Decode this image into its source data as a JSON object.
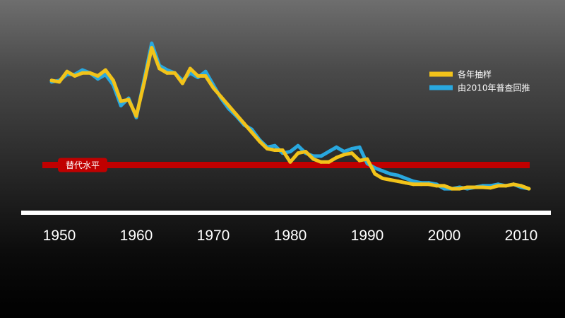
{
  "chart_data": {
    "type": "line",
    "xlim": [
      1946,
      2013
    ],
    "ylim": [
      1.0,
      7.0
    ],
    "x_ticks": [
      1950,
      1960,
      1970,
      1980,
      1990,
      2000,
      2010
    ],
    "series": [
      {
        "name": "各年抽样",
        "color": "#f2c31a",
        "points": [
          [
            1949,
            5.6
          ],
          [
            1950,
            5.55
          ],
          [
            1951,
            5.9
          ],
          [
            1952,
            5.75
          ],
          [
            1953,
            5.85
          ],
          [
            1954,
            5.85
          ],
          [
            1955,
            5.75
          ],
          [
            1956,
            5.95
          ],
          [
            1957,
            5.6
          ],
          [
            1958,
            4.9
          ],
          [
            1959,
            4.95
          ],
          [
            1960,
            4.4
          ],
          [
            1961,
            5.5
          ],
          [
            1962,
            6.7
          ],
          [
            1963,
            6.0
          ],
          [
            1964,
            5.85
          ],
          [
            1965,
            5.85
          ],
          [
            1966,
            5.5
          ],
          [
            1967,
            6.0
          ],
          [
            1968,
            5.75
          ],
          [
            1969,
            5.75
          ],
          [
            1970,
            5.35
          ],
          [
            1971,
            5.05
          ],
          [
            1972,
            4.75
          ],
          [
            1973,
            4.45
          ],
          [
            1974,
            4.15
          ],
          [
            1975,
            3.85
          ],
          [
            1976,
            3.55
          ],
          [
            1977,
            3.3
          ],
          [
            1978,
            3.25
          ],
          [
            1979,
            3.25
          ],
          [
            1980,
            2.85
          ],
          [
            1981,
            3.15
          ],
          [
            1982,
            3.2
          ],
          [
            1983,
            2.95
          ],
          [
            1984,
            2.85
          ],
          [
            1985,
            2.85
          ],
          [
            1986,
            3.0
          ],
          [
            1987,
            3.1
          ],
          [
            1988,
            3.15
          ],
          [
            1989,
            2.9
          ],
          [
            1990,
            2.95
          ],
          [
            1991,
            2.45
          ],
          [
            1992,
            2.3
          ],
          [
            1993,
            2.25
          ],
          [
            1994,
            2.2
          ],
          [
            1995,
            2.15
          ],
          [
            1996,
            2.1
          ],
          [
            1997,
            2.1
          ],
          [
            1998,
            2.1
          ],
          [
            1999,
            2.05
          ],
          [
            2000,
            2.05
          ],
          [
            2001,
            1.95
          ],
          [
            2002,
            1.95
          ],
          [
            2003,
            2.0
          ],
          [
            2004,
            2.0
          ],
          [
            2005,
            2.0
          ],
          [
            2006,
            1.98
          ],
          [
            2007,
            2.05
          ],
          [
            2008,
            2.05
          ],
          [
            2009,
            2.1
          ],
          [
            2010,
            2.05
          ],
          [
            2011,
            1.95
          ]
        ]
      },
      {
        "name": "由2010年普查回推",
        "color": "#29a8df",
        "points": [
          [
            1949,
            5.55
          ],
          [
            1950,
            5.6
          ],
          [
            1951,
            5.8
          ],
          [
            1952,
            5.8
          ],
          [
            1953,
            5.95
          ],
          [
            1954,
            5.85
          ],
          [
            1955,
            5.65
          ],
          [
            1956,
            5.8
          ],
          [
            1957,
            5.45
          ],
          [
            1958,
            4.75
          ],
          [
            1959,
            5.0
          ],
          [
            1960,
            4.35
          ],
          [
            1961,
            5.6
          ],
          [
            1962,
            6.85
          ],
          [
            1963,
            6.1
          ],
          [
            1964,
            5.95
          ],
          [
            1965,
            5.85
          ],
          [
            1966,
            5.6
          ],
          [
            1967,
            5.85
          ],
          [
            1968,
            5.7
          ],
          [
            1969,
            5.9
          ],
          [
            1970,
            5.45
          ],
          [
            1971,
            5.0
          ],
          [
            1972,
            4.65
          ],
          [
            1973,
            4.4
          ],
          [
            1974,
            4.1
          ],
          [
            1975,
            3.95
          ],
          [
            1976,
            3.6
          ],
          [
            1977,
            3.35
          ],
          [
            1978,
            3.4
          ],
          [
            1979,
            3.15
          ],
          [
            1980,
            3.2
          ],
          [
            1981,
            3.4
          ],
          [
            1982,
            3.15
          ],
          [
            1983,
            3.05
          ],
          [
            1984,
            3.05
          ],
          [
            1985,
            3.2
          ],
          [
            1986,
            3.35
          ],
          [
            1987,
            3.2
          ],
          [
            1988,
            3.3
          ],
          [
            1989,
            3.35
          ],
          [
            1990,
            2.8
          ],
          [
            1991,
            2.65
          ],
          [
            1992,
            2.55
          ],
          [
            1993,
            2.45
          ],
          [
            1994,
            2.4
          ],
          [
            1995,
            2.3
          ],
          [
            1996,
            2.2
          ],
          [
            1997,
            2.15
          ],
          [
            1998,
            2.15
          ],
          [
            1999,
            2.1
          ],
          [
            2000,
            1.95
          ],
          [
            2001,
            1.95
          ],
          [
            2002,
            2.0
          ],
          [
            2003,
            1.95
          ],
          [
            2004,
            2.0
          ],
          [
            2005,
            2.05
          ],
          [
            2006,
            2.05
          ],
          [
            2007,
            2.1
          ],
          [
            2008,
            2.05
          ],
          [
            2009,
            2.1
          ],
          [
            2010,
            2.0
          ],
          [
            2011,
            1.95
          ]
        ]
      }
    ],
    "reference_line": {
      "label": "替代水平",
      "value": 2.75,
      "color": "#c00000"
    },
    "legend_position": "top-right",
    "title": "",
    "xlabel": "",
    "ylabel": "",
    "grid": false
  }
}
